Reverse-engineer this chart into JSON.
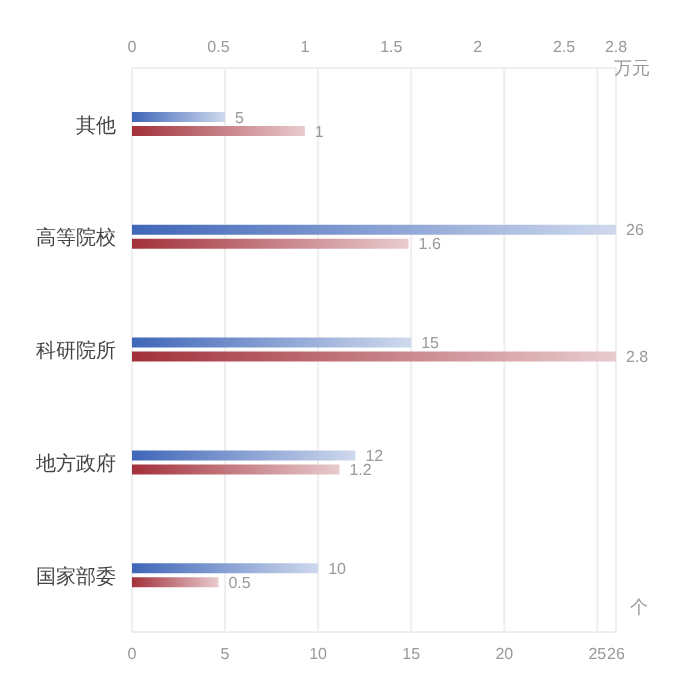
{
  "chart_data": {
    "type": "bar",
    "orientation": "horizontal",
    "categories": [
      "其他",
      "高等院校",
      "科研院所",
      "地方政府",
      "国家部委"
    ],
    "series": [
      {
        "color": "#3f66b8",
        "values": [
          5,
          26,
          15,
          12,
          10
        ]
      },
      {
        "color": "#a2303a",
        "values": [
          1,
          1.6,
          2.8,
          1.2,
          0.5
        ],
        "axis": "x2"
      }
    ],
    "xlabel": "个",
    "x2label": "万元",
    "xlim": [
      0,
      26
    ],
    "xticks": [
      0,
      5,
      10,
      15,
      20,
      25,
      26
    ],
    "x2lim": [
      0,
      2.8
    ],
    "x2ticks": [
      0,
      0.5,
      1,
      1.5,
      2,
      2.5,
      2.8
    ],
    "data_labels": true,
    "grid": "x",
    "legend": false
  }
}
